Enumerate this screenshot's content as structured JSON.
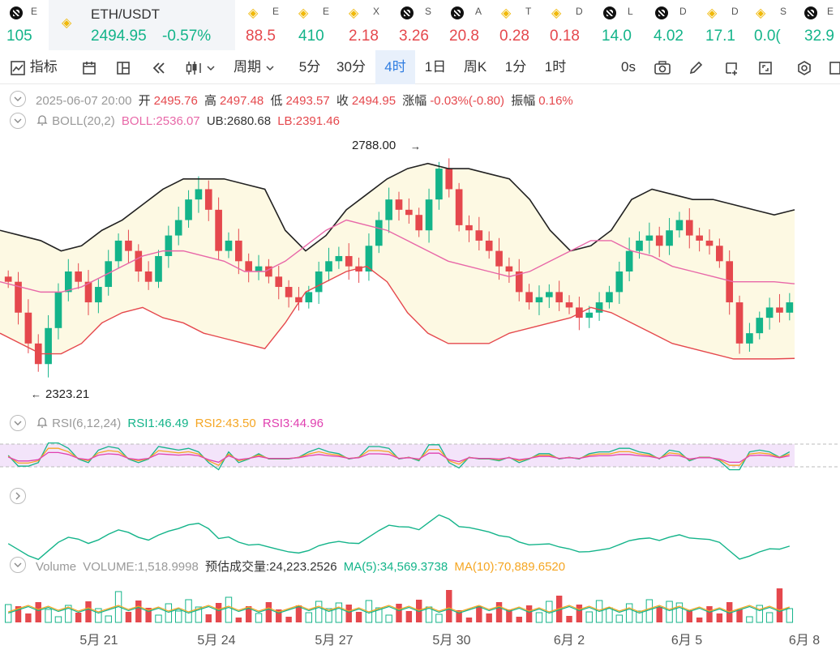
{
  "ticker_bar": {
    "items": [
      {
        "name": "E",
        "price": "105",
        "trend": "up",
        "icon": "okx-icon"
      },
      {
        "name": "ETH/USDT",
        "price": "2494.95",
        "change": "-0.57%",
        "trend": "up",
        "icon": "bnb-icon"
      },
      {
        "name": "E",
        "price": "88.5",
        "trend": "dn",
        "icon": "bnb-icon"
      },
      {
        "name": "E",
        "price": "410",
        "trend": "up",
        "icon": "bnb-icon"
      },
      {
        "name": "X",
        "price": "2.18",
        "trend": "dn",
        "icon": "bnb-icon"
      },
      {
        "name": "S",
        "price": "3.26",
        "trend": "dn",
        "icon": "okx-icon"
      },
      {
        "name": "A",
        "price": "20.8",
        "trend": "dn",
        "icon": "okx-icon"
      },
      {
        "name": "T",
        "price": "0.28",
        "trend": "dn",
        "icon": "bnb-icon"
      },
      {
        "name": "D",
        "price": "0.18",
        "trend": "dn",
        "icon": "bnb-icon"
      },
      {
        "name": "L",
        "price": "14.0",
        "trend": "up",
        "icon": "okx-icon"
      },
      {
        "name": "D",
        "price": "4.02",
        "trend": "up",
        "icon": "okx-icon"
      },
      {
        "name": "D",
        "price": "17.1",
        "trend": "up",
        "icon": "bnb-icon"
      },
      {
        "name": "S",
        "price": "0.0(",
        "trend": "up",
        "icon": "bnb-icon"
      },
      {
        "name": "E",
        "price": "32.9",
        "trend": "up",
        "icon": "okx-icon"
      }
    ]
  },
  "toolbar": {
    "indicators": "指标",
    "period": "周期",
    "intervals": [
      "5分",
      "30分",
      "4时",
      "1日",
      "周K",
      "1分",
      "1时"
    ],
    "selected_interval": "4时",
    "countdown": "0s"
  },
  "ohlc": {
    "date": "2025-06-07 20:00",
    "open_label": "开",
    "open": "2495.76",
    "high_label": "高",
    "high": "2497.48",
    "low_label": "低",
    "low": "2493.57",
    "close_label": "收",
    "close": "2494.95",
    "change_label": "涨幅",
    "change": "-0.03%(-0.80)",
    "amplitude_label": "振幅",
    "amplitude": "0.16%"
  },
  "boll": {
    "label": "BOLL(20,2)",
    "mid": "BOLL:2536.07",
    "ub": "UB:2680.68",
    "lb": "LB:2391.46"
  },
  "rsi": {
    "label": "RSI(6,12,24)",
    "rsi1": "RSI1:46.49",
    "rsi2": "RSI2:43.50",
    "rsi3": "RSI3:44.96"
  },
  "volume": {
    "label": "Volume",
    "volume": "VOLUME:1,518.9998",
    "estimated": "预估成交量:24,223.2526",
    "ma5": "MA(5):34,569.3738",
    "ma10": "MA(10):70,889.6520"
  },
  "chart_data": {
    "type": "candlestick",
    "symbol": "ETH/USDT",
    "interval": "4h",
    "max_marker": "2788.00",
    "min_marker": "2323.21",
    "x_tick_labels": [
      "5月 21",
      "5月 24",
      "5月 27",
      "5月 30",
      "6月 2",
      "6月 5",
      "6月 8"
    ],
    "close_series": [
      2540,
      2480,
      2420,
      2380,
      2450,
      2520,
      2560,
      2540,
      2500,
      2530,
      2580,
      2620,
      2600,
      2560,
      2540,
      2590,
      2630,
      2660,
      2700,
      2720,
      2680,
      2600,
      2620,
      2580,
      2560,
      2570,
      2550,
      2530,
      2510,
      2500,
      2520,
      2560,
      2580,
      2590,
      2570,
      2560,
      2610,
      2660,
      2700,
      2680,
      2670,
      2640,
      2700,
      2760,
      2720,
      2650,
      2640,
      2620,
      2600,
      2570,
      2560,
      2520,
      2500,
      2510,
      2520,
      2500,
      2490,
      2470,
      2480,
      2500,
      2520,
      2560,
      2600,
      2620,
      2630,
      2610,
      2640,
      2660,
      2630,
      2620,
      2610,
      2580,
      2500,
      2420,
      2440,
      2470,
      2490,
      2480,
      2500
    ],
    "boll_ub_series": [
      2640,
      2630,
      2620,
      2600,
      2610,
      2640,
      2660,
      2690,
      2720,
      2740,
      2740,
      2740,
      2730,
      2720,
      2640,
      2600,
      2630,
      2680,
      2710,
      2740,
      2760,
      2770,
      2760,
      2760,
      2750,
      2740,
      2700,
      2640,
      2600,
      2610,
      2640,
      2700,
      2720,
      2710,
      2700,
      2700,
      2690,
      2680,
      2670,
      2680
    ],
    "boll_mid_series": [
      2540,
      2530,
      2520,
      2520,
      2530,
      2550,
      2570,
      2590,
      2600,
      2600,
      2590,
      2580,
      2560,
      2560,
      2580,
      2610,
      2640,
      2660,
      2650,
      2640,
      2620,
      2600,
      2580,
      2570,
      2560,
      2550,
      2560,
      2580,
      2600,
      2620,
      2620,
      2600,
      2590,
      2570,
      2560,
      2550,
      2540,
      2540,
      2540,
      2536
    ],
    "boll_lb_series": [
      2440,
      2420,
      2400,
      2400,
      2420,
      2460,
      2480,
      2490,
      2470,
      2460,
      2440,
      2430,
      2420,
      2410,
      2460,
      2520,
      2540,
      2560,
      2570,
      2540,
      2480,
      2440,
      2420,
      2420,
      2420,
      2440,
      2450,
      2460,
      2470,
      2490,
      2480,
      2460,
      2440,
      2420,
      2410,
      2400,
      2390,
      2390,
      2390,
      2391
    ],
    "ylim": [
      2300,
      2820
    ]
  },
  "colors": {
    "up": "#14b48a",
    "down": "#e5484d",
    "boll_ub": "#222222",
    "boll_mid": "#e868a8",
    "boll_lb": "#e5484d",
    "band_fill": "#fdf9e3",
    "accent": "#2f7de1"
  }
}
